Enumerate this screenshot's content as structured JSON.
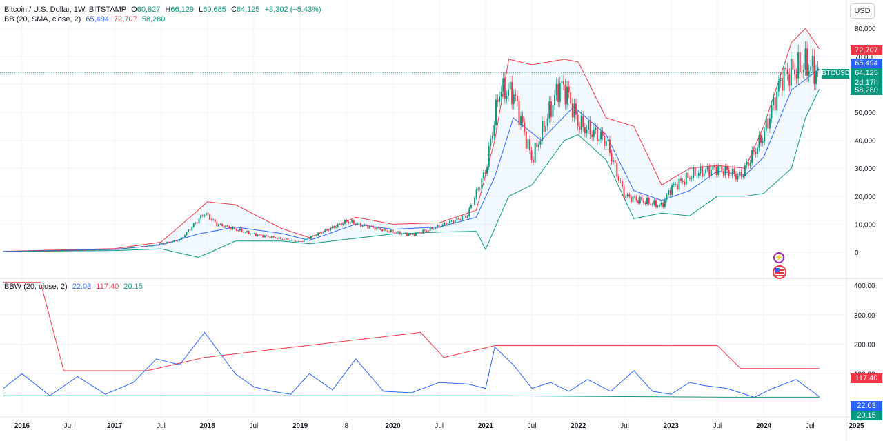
{
  "ui": {
    "currency_button": "USD",
    "symbol_badge": "BTCUSD",
    "countdown": "2d 17h",
    "icons": [
      "flash-icon",
      "us-flag-icon"
    ]
  },
  "legend_main": {
    "title": "Bitcoin / U.S. Dollar, 1W, BITSTAMP",
    "o_label": "O",
    "o_value": "60,827",
    "h_label": "H",
    "h_value": "66,129",
    "l_label": "L",
    "l_value": "60,685",
    "c_label": "C",
    "c_value": "64,125",
    "change": "+3,302 (+5.43%)"
  },
  "legend_bb": {
    "name": "BB (20, SMA, close, 2)",
    "basis": "65,494",
    "upper": "72,707",
    "lower": "58,280"
  },
  "legend_bbw": {
    "name": "BBW (20, close, 2)",
    "bbw": "22.03",
    "highest": "117.40",
    "lowest": "20.15"
  },
  "price_badges": {
    "upper": "72,707",
    "basis": "65,494",
    "close": "64,125",
    "lower": "58,280"
  },
  "bbw_badges": {
    "highest": "117.40",
    "bbw": "22.03",
    "lowest": "20.15"
  },
  "colors": {
    "up": "#089981",
    "down": "#f23645",
    "basis": "#2962ff",
    "upper": "#f23645",
    "lower": "#089981",
    "fill": "#2196f3",
    "grid": "#f0f3fa"
  },
  "chart_data": [
    {
      "type": "candlestick",
      "title": "Bitcoin / U.S. Dollar, 1W, BITSTAMP",
      "xlabel": "",
      "ylabel": "",
      "x_ticks": [
        "2016",
        "Jul",
        "2017",
        "Jul",
        "2018",
        "Jul",
        "2019",
        "8",
        "2020",
        "Jul",
        "2021",
        "Jul",
        "2022",
        "Jul",
        "2023",
        "Jul",
        "2024",
        "Jul",
        "2025"
      ],
      "x_tick_dates": [
        2016.0,
        2016.5,
        2017.0,
        2017.5,
        2018.0,
        2018.5,
        2019.0,
        2019.5,
        2020.0,
        2020.5,
        2021.0,
        2021.5,
        2022.0,
        2022.5,
        2023.0,
        2023.5,
        2024.0,
        2024.5,
        2025.0
      ],
      "y_ticks": [
        "0",
        "10,000",
        "20,000",
        "30,000",
        "40,000",
        "50,000",
        "60,000",
        "70,000",
        "80,000"
      ],
      "ylim": [
        0,
        80000
      ],
      "grid": true,
      "series": [
        {
          "name": "Close",
          "x": [
            2015.8,
            2016.0,
            2016.5,
            2017.0,
            2017.4,
            2017.7,
            2017.97,
            2018.1,
            2018.5,
            2019.0,
            2019.5,
            2020.0,
            2020.2,
            2020.5,
            2020.8,
            2021.0,
            2021.15,
            2021.3,
            2021.5,
            2021.8,
            2021.88,
            2022.0,
            2022.3,
            2022.5,
            2022.9,
            2023.0,
            2023.25,
            2023.5,
            2023.75,
            2024.0,
            2024.2,
            2024.45,
            2024.6
          ],
          "values": [
            300,
            430,
            650,
            1000,
            2400,
            4300,
            14000,
            10000,
            6400,
            3700,
            11000,
            7200,
            6200,
            9200,
            13000,
            29000,
            58000,
            57000,
            33000,
            60000,
            57000,
            46000,
            40000,
            20000,
            16500,
            23000,
            28000,
            30000,
            27000,
            42000,
            63000,
            67000,
            64125
          ]
        },
        {
          "name": "BB Basis",
          "x": [
            2015.8,
            2017.0,
            2017.5,
            2017.9,
            2018.3,
            2018.8,
            2019.1,
            2019.6,
            2020.0,
            2020.5,
            2020.9,
            2021.1,
            2021.3,
            2021.6,
            2021.95,
            2022.3,
            2022.6,
            2022.9,
            2023.2,
            2023.5,
            2023.8,
            2024.0,
            2024.3,
            2024.6
          ],
          "values": [
            300,
            1000,
            2600,
            6500,
            9000,
            6700,
            4200,
            10000,
            8200,
            9000,
            12500,
            27000,
            48000,
            40000,
            52000,
            42000,
            22000,
            18500,
            22000,
            29000,
            27500,
            34000,
            58000,
            65494
          ]
        },
        {
          "name": "BB Upper",
          "x": [
            2015.8,
            2017.0,
            2017.5,
            2017.9,
            2018.0,
            2018.3,
            2018.8,
            2019.1,
            2019.6,
            2020.0,
            2020.5,
            2020.9,
            2021.1,
            2021.25,
            2021.5,
            2021.85,
            2022.0,
            2022.3,
            2022.6,
            2022.9,
            2023.2,
            2023.5,
            2023.8,
            2024.0,
            2024.3,
            2024.45,
            2024.6
          ],
          "values": [
            350,
            1300,
            3600,
            15000,
            18000,
            17000,
            8500,
            5200,
            12500,
            10000,
            10500,
            15000,
            40000,
            69000,
            67000,
            69000,
            68000,
            48000,
            45000,
            24000,
            30000,
            31000,
            30000,
            45000,
            75000,
            80000,
            72707
          ]
        },
        {
          "name": "BB Lower",
          "x": [
            2015.8,
            2017.0,
            2017.5,
            2017.9,
            2018.0,
            2018.3,
            2018.8,
            2019.1,
            2019.6,
            2020.0,
            2020.5,
            2020.9,
            2021.0,
            2021.25,
            2021.5,
            2021.85,
            2022.0,
            2022.3,
            2022.6,
            2022.9,
            2023.2,
            2023.5,
            2023.8,
            2024.0,
            2024.3,
            2024.45,
            2024.6
          ],
          "values": [
            250,
            600,
            1200,
            -1800,
            -500,
            4000,
            4000,
            3000,
            5000,
            6500,
            7200,
            7500,
            1000,
            20000,
            24000,
            40000,
            42000,
            33000,
            12000,
            14000,
            13000,
            20000,
            20000,
            21000,
            30000,
            48000,
            58280
          ]
        }
      ]
    },
    {
      "type": "line",
      "title": "BBW (20, close, 2)",
      "xlabel": "",
      "ylabel": "",
      "y_ticks": [
        "100.00",
        "200.00",
        "300.00",
        "400.00"
      ],
      "ylim": [
        0,
        450
      ],
      "grid": true,
      "series": [
        {
          "name": "BBW",
          "x": [
            2015.8,
            2016.0,
            2016.3,
            2016.6,
            2016.9,
            2017.2,
            2017.45,
            2017.7,
            2017.97,
            2018.3,
            2018.5,
            2018.7,
            2018.9,
            2019.1,
            2019.35,
            2019.6,
            2019.9,
            2020.2,
            2020.5,
            2020.8,
            2021.0,
            2021.1,
            2021.3,
            2021.5,
            2021.7,
            2021.9,
            2022.1,
            2022.35,
            2022.6,
            2022.8,
            2023.0,
            2023.2,
            2023.35,
            2023.6,
            2023.9,
            2024.1,
            2024.35,
            2024.6
          ],
          "values": [
            50,
            100,
            25,
            90,
            30,
            70,
            150,
            130,
            240,
            100,
            55,
            40,
            30,
            100,
            45,
            150,
            40,
            35,
            70,
            65,
            50,
            190,
            130,
            50,
            70,
            40,
            80,
            40,
            110,
            40,
            30,
            70,
            60,
            50,
            20,
            50,
            80,
            22.03
          ]
        },
        {
          "name": "Highest Expansion",
          "x": [
            2015.8,
            2016.2,
            2016.45,
            2017.35,
            2017.97,
            2020.3,
            2020.55,
            2021.1,
            2023.5,
            2023.75,
            2024.6
          ],
          "values": [
            410,
            410,
            110,
            110,
            155,
            240,
            155,
            195,
            195,
            117.4,
            117.4
          ]
        },
        {
          "name": "Lowest Contraction",
          "x": [
            2015.8,
            2021.2,
            2023.6,
            2024.6
          ],
          "values": [
            25,
            25,
            20.15,
            20.15
          ]
        }
      ]
    }
  ]
}
